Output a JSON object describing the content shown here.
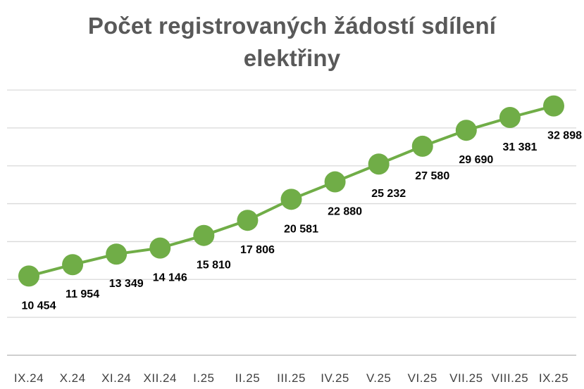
{
  "chart_data": {
    "type": "line",
    "title": "Počet registrovaných žádostí sdílení elektřiny",
    "title_lines": [
      "Počet registrovaných žádostí sdílení",
      "elektřiny"
    ],
    "categories": [
      "IX.24",
      "X.24",
      "XI.24",
      "XII.24",
      "I.25",
      "II.25",
      "III.25",
      "IV.25",
      "V.25",
      "VI.25",
      "VII.25",
      "VIII.25",
      "IX.25"
    ],
    "series": [
      {
        "values": [
          10454,
          11954,
          13349,
          14146,
          15810,
          17806,
          20581,
          22880,
          25232,
          27580,
          29690,
          31381,
          32898
        ],
        "labels": [
          "10 454",
          "11 954",
          "13 349",
          "14 146",
          "15 810",
          "17 806",
          "20 581",
          "22 880",
          "25 232",
          "27 580",
          "29 690",
          "31 381",
          "32 898"
        ],
        "color": "#70ad47"
      }
    ],
    "ylim": [
      0,
      35000
    ],
    "grid": true,
    "legend": "none",
    "y_tick_labels_shown": false
  },
  "colors": {
    "series": "#70ad47",
    "title": "#595959",
    "gridline": "#d9d9d9",
    "axis_text": "#404040"
  }
}
